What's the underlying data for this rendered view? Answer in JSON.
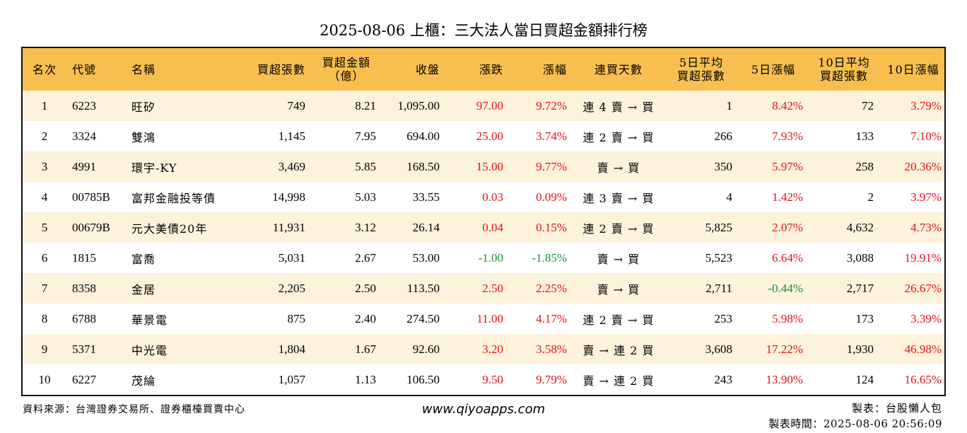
{
  "title": "2025-08-06 上櫃：三大法人當日買超金額排行榜",
  "colors": {
    "header_bg": "#f8bf50",
    "stripe_bg": "#fdf2dc",
    "up": "#e8101a",
    "down": "#14953a"
  },
  "headers": {
    "rank": "名次",
    "code": "代號",
    "name": "名稱",
    "shares": "買超張數",
    "amount_l1": "買超金額",
    "amount_l2": "（億）",
    "close": "收盤",
    "change": "漲跌",
    "pct": "漲幅",
    "streak": "連買天數",
    "avg5_l1": "5日平均",
    "avg5_l2": "買超張數",
    "pct5": "5日漲幅",
    "avg10_l1": "10日平均",
    "avg10_l2": "買超張數",
    "pct10": "10日漲幅"
  },
  "rows": [
    {
      "rank": "1",
      "code": "6223",
      "name": "旺矽",
      "shares": "749",
      "amount": "8.21",
      "close": "1,095.00",
      "change": "97.00",
      "pct": "9.72%",
      "streak": "連 4 賣 → 買",
      "avg5": "1",
      "pct5": "8.42%",
      "avg10": "72",
      "pct10": "3.79%"
    },
    {
      "rank": "2",
      "code": "3324",
      "name": "雙鴻",
      "shares": "1,145",
      "amount": "7.95",
      "close": "694.00",
      "change": "25.00",
      "pct": "3.74%",
      "streak": "連 2 賣 → 買",
      "avg5": "266",
      "pct5": "7.93%",
      "avg10": "133",
      "pct10": "7.10%"
    },
    {
      "rank": "3",
      "code": "4991",
      "name": "環宇-KY",
      "shares": "3,469",
      "amount": "5.85",
      "close": "168.50",
      "change": "15.00",
      "pct": "9.77%",
      "streak": "賣 → 買",
      "avg5": "350",
      "pct5": "5.97%",
      "avg10": "258",
      "pct10": "20.36%"
    },
    {
      "rank": "4",
      "code": "00785B",
      "name": "富邦金融投等債",
      "shares": "14,998",
      "amount": "5.03",
      "close": "33.55",
      "change": "0.03",
      "pct": "0.09%",
      "streak": "連 3 賣 → 買",
      "avg5": "4",
      "pct5": "1.42%",
      "avg10": "2",
      "pct10": "3.97%"
    },
    {
      "rank": "5",
      "code": "00679B",
      "name": "元大美債20年",
      "shares": "11,931",
      "amount": "3.12",
      "close": "26.14",
      "change": "0.04",
      "pct": "0.15%",
      "streak": "連 2 賣 → 買",
      "avg5": "5,825",
      "pct5": "2.07%",
      "avg10": "4,632",
      "pct10": "4.73%"
    },
    {
      "rank": "6",
      "code": "1815",
      "name": "富喬",
      "shares": "5,031",
      "amount": "2.67",
      "close": "53.00",
      "change": "-1.00",
      "pct": "-1.85%",
      "streak": "賣 → 買",
      "avg5": "5,523",
      "pct5": "6.64%",
      "avg10": "3,088",
      "pct10": "19.91%"
    },
    {
      "rank": "7",
      "code": "8358",
      "name": "金居",
      "shares": "2,205",
      "amount": "2.50",
      "close": "113.50",
      "change": "2.50",
      "pct": "2.25%",
      "streak": "賣 → 買",
      "avg5": "2,711",
      "pct5": "-0.44%",
      "avg10": "2,717",
      "pct10": "26.67%"
    },
    {
      "rank": "8",
      "code": "6788",
      "name": "華景電",
      "shares": "875",
      "amount": "2.40",
      "close": "274.50",
      "change": "11.00",
      "pct": "4.17%",
      "streak": "連 2 賣 → 買",
      "avg5": "253",
      "pct5": "5.98%",
      "avg10": "173",
      "pct10": "3.39%"
    },
    {
      "rank": "9",
      "code": "5371",
      "name": "中光電",
      "shares": "1,804",
      "amount": "1.67",
      "close": "92.60",
      "change": "3.20",
      "pct": "3.58%",
      "streak": "賣 → 連 2 買",
      "avg5": "3,608",
      "pct5": "17.22%",
      "avg10": "1,930",
      "pct10": "46.98%"
    },
    {
      "rank": "10",
      "code": "6227",
      "name": "茂綸",
      "shares": "1,057",
      "amount": "1.13",
      "close": "106.50",
      "change": "9.50",
      "pct": "9.79%",
      "streak": "賣 → 連 2 買",
      "avg5": "243",
      "pct5": "13.90%",
      "avg10": "124",
      "pct10": "16.65%"
    }
  ],
  "footer": {
    "source": "資料來源：台灣證券交易所、證券櫃檯買賣中心",
    "website": "www.qiyoapps.com",
    "maker": "製表：台股懶人包",
    "time": "製表時間：2025-08-06 20:56:09"
  }
}
